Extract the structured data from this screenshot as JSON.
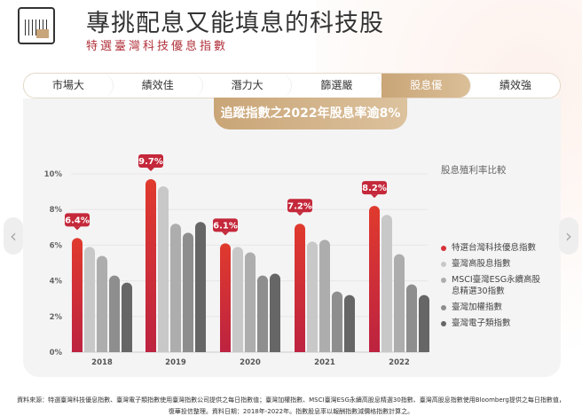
{
  "header": {
    "title": "專挑配息又能填息的科技股",
    "subtitle": "特選臺灣科技優息指數"
  },
  "tabs": [
    {
      "label": "市場大"
    },
    {
      "label": "績效佳"
    },
    {
      "label": "潛力大"
    },
    {
      "label": "篩選嚴"
    },
    {
      "label": "股息優",
      "active": true
    },
    {
      "label": "績效強"
    }
  ],
  "banner": "追蹤指數之2022年股息率逾8%",
  "chart_data": {
    "type": "bar",
    "categories": [
      "2018",
      "2019",
      "2020",
      "2021",
      "2022"
    ],
    "ylim": [
      0,
      10
    ],
    "yticks": [
      "0%",
      "2%",
      "4%",
      "6%",
      "8%",
      "10%"
    ],
    "legend_title": "股息殖利率比較",
    "legend_position": "right",
    "grid": true,
    "series": [
      {
        "name": "特選台灣科技優息指數",
        "color": "#d7313a",
        "values": [
          6.4,
          9.7,
          6.1,
          7.2,
          8.2
        ],
        "labels": [
          "6.4%",
          "9.7%",
          "6.1%",
          "7.2%",
          "8.2%"
        ]
      },
      {
        "name": "臺灣高股息指數",
        "color": "#c8c8c8",
        "values": [
          5.9,
          9.3,
          5.9,
          6.2,
          7.7
        ]
      },
      {
        "name": "MSCI臺灣ESG永續高股息精選30指數",
        "color": "#adadad",
        "values": [
          5.4,
          7.2,
          5.6,
          6.3,
          5.5
        ]
      },
      {
        "name": "臺灣加權指數",
        "color": "#8e8e8e",
        "values": [
          4.3,
          6.7,
          4.3,
          3.4,
          3.8
        ]
      },
      {
        "name": "臺灣電子類指數",
        "color": "#666666",
        "values": [
          3.9,
          7.3,
          4.4,
          3.2,
          3.2
        ]
      }
    ]
  },
  "footer": {
    "line1": "資料來源：特選臺灣科技優息指數、臺灣電子類指數使用臺灣指數公司提供之每日指數值；臺灣加權指數、MSCI臺灣ESG永續高股息精選30指數、臺灣高股息指數使用Bloomberg提供之每日指數值，",
    "line2": "復華投信整理。資料日期：2018年-2022年。指數股息率以報酬指數減價格指數計算之。"
  },
  "nav": {
    "prev": "‹",
    "next": "›"
  }
}
